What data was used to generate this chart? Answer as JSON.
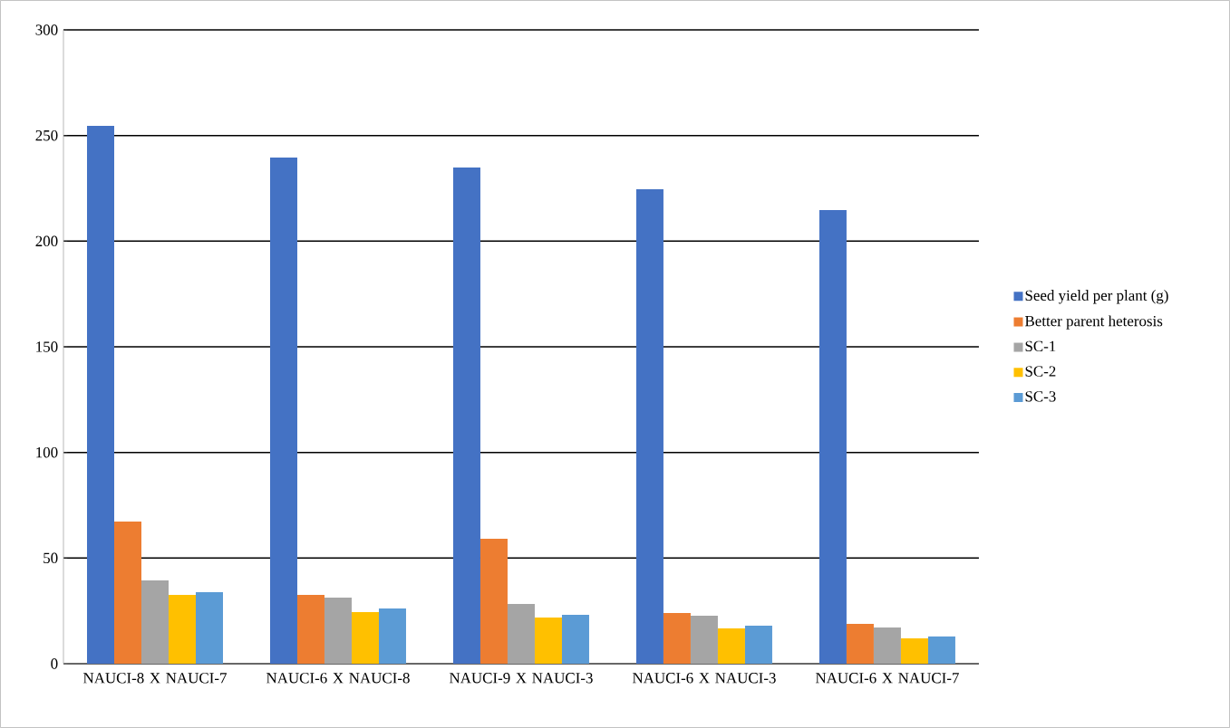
{
  "chart_data": {
    "type": "bar",
    "categories": [
      "NAUCI-8 X NAUCI-7",
      "NAUCI-6 X NAUCI-8",
      "NAUCI-9 X NAUCI-3",
      "NAUCI-6 X NAUCI-3",
      "NAUCI-6 X NAUCI-7"
    ],
    "series": [
      {
        "name": "Seed yield per plant (g)",
        "color": "#4472c4",
        "values": [
          254.6,
          239.6,
          234.9,
          224.6,
          214.7
        ]
      },
      {
        "name": "Better parent heterosis",
        "color": "#ed7d31",
        "values": [
          67.3,
          32.6,
          59.1,
          24,
          18.9
        ]
      },
      {
        "name": "SC-1",
        "color": "#a5a5a5",
        "values": [
          39.4,
          31.3,
          28.3,
          22.7,
          17.1
        ]
      },
      {
        "name": "SC-2",
        "color": "#ffc000",
        "values": [
          32.6,
          24.4,
          21.9,
          16.7,
          12
        ]
      },
      {
        "name": "SC-3",
        "color": "#5b9bd5",
        "values": [
          33.9,
          26.1,
          23.1,
          18,
          12.9
        ]
      }
    ],
    "ylim": [
      0,
      300
    ],
    "yticks": [
      0,
      50,
      100,
      150,
      200,
      250,
      300
    ],
    "grid": "y",
    "legend": "right"
  }
}
